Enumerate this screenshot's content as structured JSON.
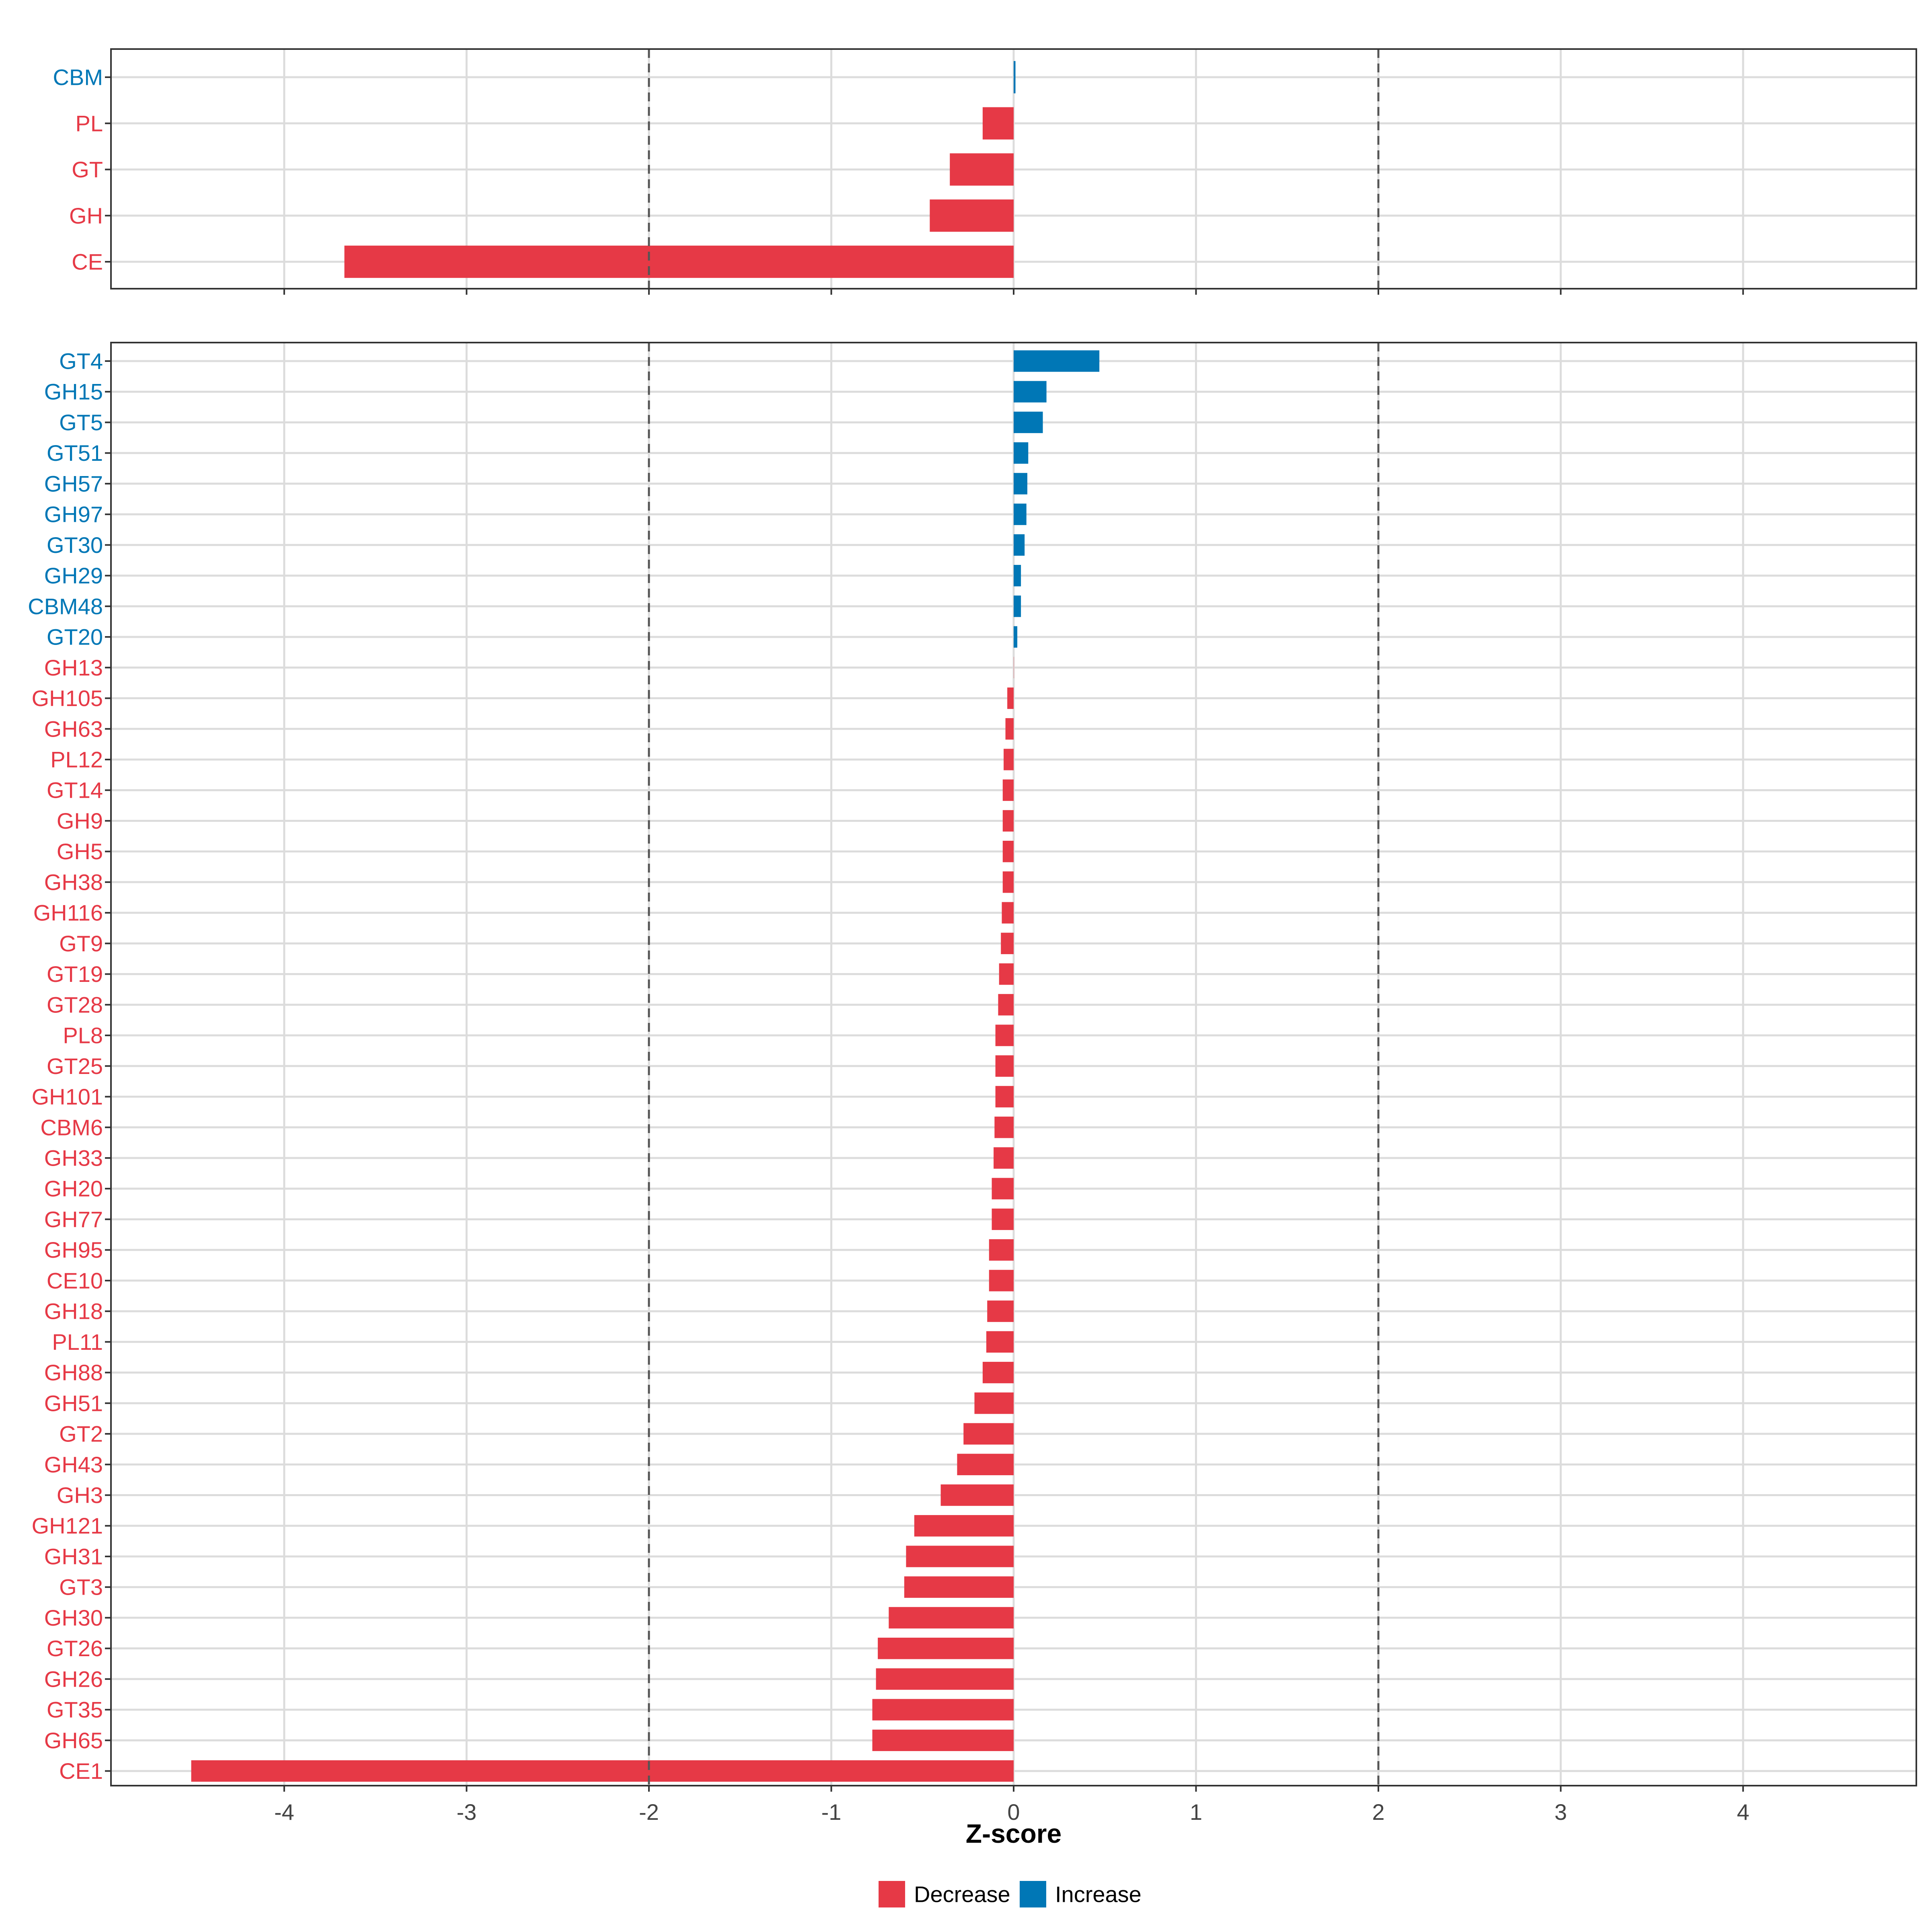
{
  "chart_data": [
    {
      "type": "bar",
      "orientation": "horizontal",
      "panel": "top",
      "categories": [
        "CBM",
        "PL",
        "GT",
        "GH",
        "CE"
      ],
      "values": [
        0.01,
        -0.17,
        -0.35,
        -0.46,
        -3.67
      ],
      "groups": [
        "Increase",
        "Decrease",
        "Decrease",
        "Decrease",
        "Decrease"
      ],
      "xlim": [
        -4.95,
        4.95
      ],
      "reference_lines": [
        -2,
        2
      ],
      "grid": true
    },
    {
      "type": "bar",
      "orientation": "horizontal",
      "panel": "bottom",
      "categories": [
        "GT4",
        "GH15",
        "GT5",
        "GT51",
        "GH57",
        "GH97",
        "GT30",
        "GH29",
        "CBM48",
        "GT20",
        "GH13",
        "GH105",
        "GH63",
        "PL12",
        "GT14",
        "GH9",
        "GH5",
        "GH38",
        "GH116",
        "GT9",
        "GT19",
        "GT28",
        "PL8",
        "GT25",
        "GH101",
        "CBM6",
        "GH33",
        "GH20",
        "GH77",
        "GH95",
        "CE10",
        "GH18",
        "PL11",
        "GH88",
        "GH51",
        "GT2",
        "GH43",
        "GH3",
        "GH121",
        "GH31",
        "GT3",
        "GH30",
        "GT26",
        "GH26",
        "GT35",
        "GH65",
        "CE1"
      ],
      "values": [
        0.47,
        0.18,
        0.16,
        0.08,
        0.075,
        0.07,
        0.06,
        0.04,
        0.04,
        0.02,
        0.0,
        -0.035,
        -0.045,
        -0.055,
        -0.06,
        -0.06,
        -0.06,
        -0.06,
        -0.065,
        -0.07,
        -0.08,
        -0.085,
        -0.1,
        -0.1,
        -0.1,
        -0.105,
        -0.11,
        -0.12,
        -0.12,
        -0.135,
        -0.135,
        -0.145,
        -0.15,
        -0.17,
        -0.215,
        -0.275,
        -0.31,
        -0.4,
        -0.545,
        -0.59,
        -0.6,
        -0.685,
        -0.745,
        -0.755,
        -0.775,
        -0.775,
        -4.51
      ],
      "groups": [
        "Increase",
        "Increase",
        "Increase",
        "Increase",
        "Increase",
        "Increase",
        "Increase",
        "Increase",
        "Increase",
        "Increase",
        "Decrease",
        "Decrease",
        "Decrease",
        "Decrease",
        "Decrease",
        "Decrease",
        "Decrease",
        "Decrease",
        "Decrease",
        "Decrease",
        "Decrease",
        "Decrease",
        "Decrease",
        "Decrease",
        "Decrease",
        "Decrease",
        "Decrease",
        "Decrease",
        "Decrease",
        "Decrease",
        "Decrease",
        "Decrease",
        "Decrease",
        "Decrease",
        "Decrease",
        "Decrease",
        "Decrease",
        "Decrease",
        "Decrease",
        "Decrease",
        "Decrease",
        "Decrease",
        "Decrease",
        "Decrease",
        "Decrease",
        "Decrease",
        "Decrease"
      ],
      "xlim": [
        -4.95,
        4.95
      ],
      "xticks": [
        "-4",
        "-3",
        "-2",
        "-1",
        "0",
        "1",
        "2",
        "3",
        "4"
      ],
      "xlabel": "Z-score",
      "reference_lines": [
        -2,
        2
      ],
      "grid": true
    }
  ],
  "legend": {
    "placement": "bottom",
    "entries": [
      {
        "label": "Decrease",
        "color": "#E63946"
      },
      {
        "label": "Increase",
        "color": "#0077B6"
      }
    ]
  },
  "colors": {
    "Decrease": "#E63946",
    "Increase": "#0077B6",
    "grid": "#DCDCDC",
    "panel_border": "#333333",
    "reference_line": "#555555"
  }
}
